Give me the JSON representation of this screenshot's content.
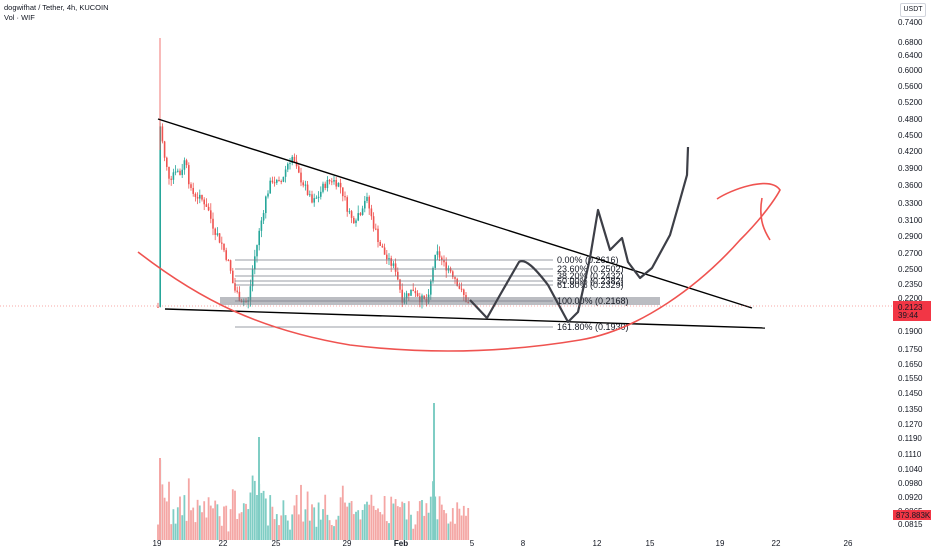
{
  "header": {
    "symbol": "dogwifhat / Tether, 4h, KUCOIN",
    "volume_label": "Vol · WIF"
  },
  "currency_button": "USDT",
  "price_axis": {
    "ticks": [
      "0.7400",
      "0.6800",
      "0.6400",
      "0.6000",
      "0.5600",
      "0.5200",
      "0.4800",
      "0.4500",
      "0.4200",
      "0.3900",
      "0.3600",
      "0.3300",
      "0.3100",
      "0.2900",
      "0.2700",
      "0.2500",
      "0.2350",
      "0.2200",
      "0.1900",
      "0.1750",
      "0.1650",
      "0.1550",
      "0.1450",
      "0.1350",
      "0.1270",
      "0.1190",
      "0.1110",
      "0.1040",
      "0.0980",
      "0.0920",
      "0.0865",
      "0.0815"
    ],
    "last_price_label": "0.2123",
    "countdown_label": "39:44",
    "volume_label": "873.883K",
    "colors": {
      "last_price": "#f23645",
      "volume_badge": "#f23645"
    }
  },
  "time_axis": {
    "ticks": [
      {
        "label": "19",
        "bold": false
      },
      {
        "label": "22",
        "bold": false
      },
      {
        "label": "25",
        "bold": false
      },
      {
        "label": "29",
        "bold": false
      },
      {
        "label": "Feb",
        "bold": true
      },
      {
        "label": "5",
        "bold": false
      },
      {
        "label": "8",
        "bold": false
      },
      {
        "label": "12",
        "bold": false
      },
      {
        "label": "15",
        "bold": false
      },
      {
        "label": "19",
        "bold": false
      },
      {
        "label": "22",
        "bold": false
      },
      {
        "label": "26",
        "bold": false
      }
    ]
  },
  "fib_levels": [
    {
      "label": "0.00% (0.2616)",
      "price": 0.2616
    },
    {
      "label": "23.60% (0.2502)",
      "price": 0.2502
    },
    {
      "label": "38.20% (0.2432)",
      "price": 0.2432
    },
    {
      "label": "50.00% (0.2382)",
      "price": 0.2382
    },
    {
      "label": "61.80% (0.2329)",
      "price": 0.2329
    },
    {
      "label": "100.00% (0.2168)",
      "price": 0.2168
    },
    {
      "label": "161.80% (0.1930)",
      "price": 0.193
    }
  ],
  "chart_data": {
    "type": "candlestick",
    "symbol": "WIF/USDT",
    "interval": "4h",
    "colors": {
      "up": "#26a69a",
      "down": "#ef5350",
      "vol_up": "#7fcdc4",
      "vol_down": "#f4a6a4",
      "trendline": "#000000",
      "drawing_dark": "#3d3f47",
      "drawing_red": "#ef5350"
    },
    "annotations": [
      "descending trendline",
      "support trendline",
      "fibonacci retracement",
      "hand-drawn projected path",
      "hand-drawn rounded bottom"
    ]
  }
}
